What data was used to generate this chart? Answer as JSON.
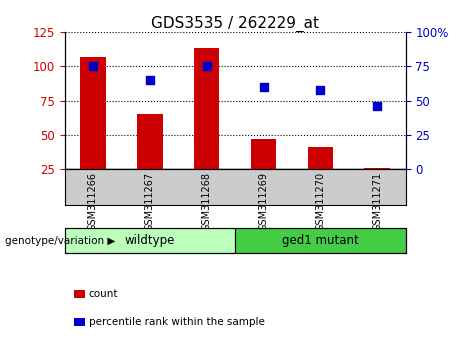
{
  "title": "GDS3535 / 262229_at",
  "samples": [
    "GSM311266",
    "GSM311267",
    "GSM311268",
    "GSM311269",
    "GSM311270",
    "GSM311271"
  ],
  "bar_values": [
    107,
    65,
    113,
    47,
    41,
    26
  ],
  "percentile_values": [
    75,
    65,
    75,
    60,
    58,
    46
  ],
  "ylim_left": [
    25,
    125
  ],
  "ylim_right": [
    0,
    100
  ],
  "yticks_left": [
    25,
    50,
    75,
    100,
    125
  ],
  "yticks_right": [
    0,
    25,
    50,
    75,
    100
  ],
  "bar_color": "#cc0000",
  "dot_color": "#0000cc",
  "groups": [
    {
      "label": "wildtype",
      "indices": [
        0,
        1,
        2
      ],
      "color": "#bbffbb"
    },
    {
      "label": "ged1 mutant",
      "indices": [
        3,
        4,
        5
      ],
      "color": "#44cc44"
    }
  ],
  "group_label": "genotype/variation",
  "legend_count": "count",
  "legend_percentile": "percentile rank within the sample",
  "background_xlabels": "#cccccc",
  "title_fontsize": 11
}
